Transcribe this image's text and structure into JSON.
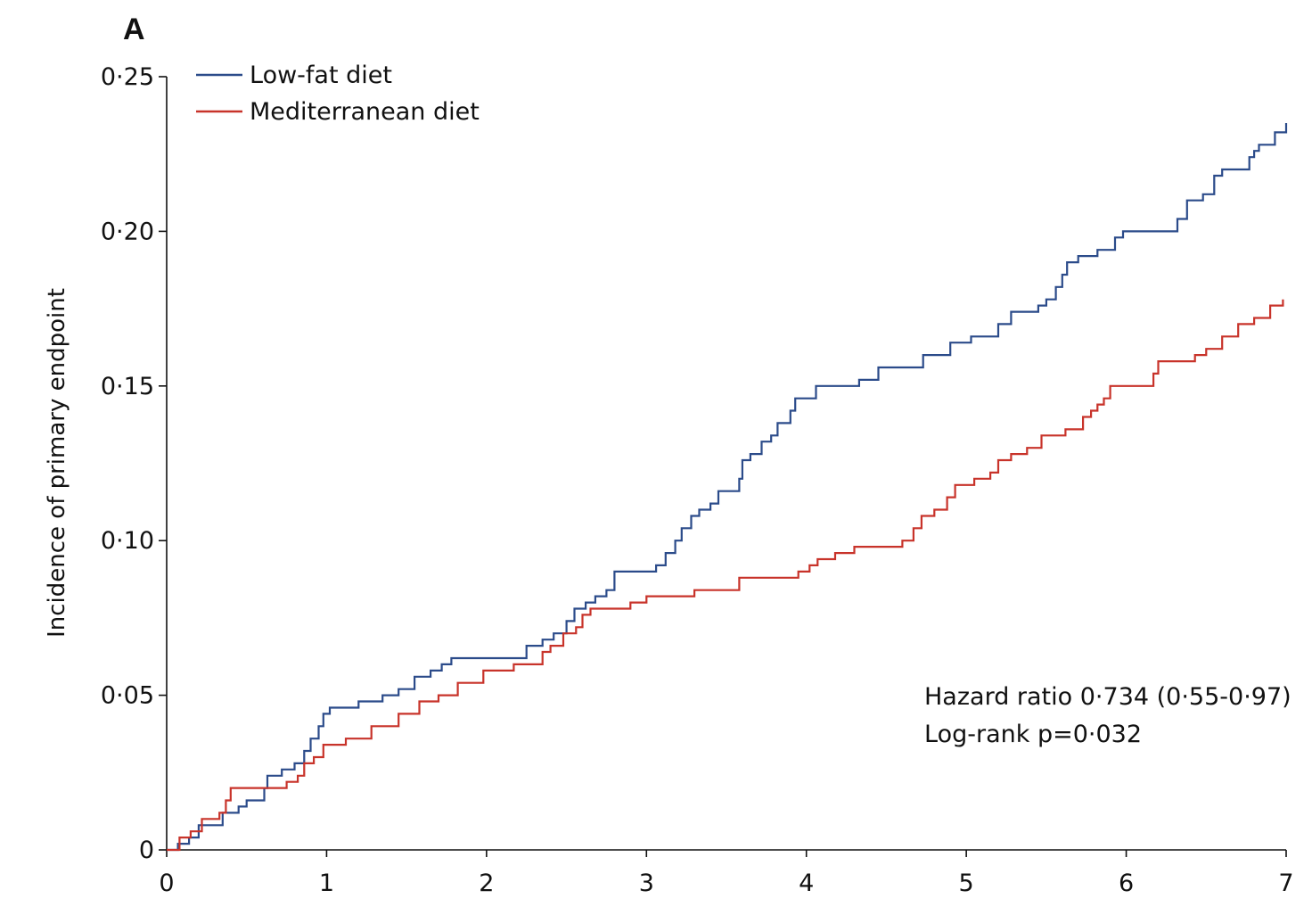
{
  "panel_label": "A",
  "chart_data": {
    "type": "line",
    "step": true,
    "xlabel": "",
    "ylabel": "Incidence of primary endpoint",
    "xlim": [
      0,
      7
    ],
    "ylim": [
      0,
      0.25
    ],
    "x_ticks": [
      0,
      1,
      2,
      3,
      4,
      5,
      6,
      7
    ],
    "x_tick_labels": [
      "0",
      "1",
      "2",
      "3",
      "4",
      "5",
      "6",
      "7"
    ],
    "y_ticks": [
      0,
      0.05,
      0.1,
      0.15,
      0.2,
      0.25
    ],
    "y_tick_labels": [
      "0",
      "0·05",
      "0·10",
      "0·15",
      "0·20",
      "0·25"
    ],
    "grid": false,
    "legend_position": "top-left",
    "series": [
      {
        "name": "Low-fat diet",
        "color": "#2b4b8a",
        "points": [
          [
            0,
            0
          ],
          [
            0.07,
            0.002
          ],
          [
            0.14,
            0.004
          ],
          [
            0.2,
            0.008
          ],
          [
            0.35,
            0.012
          ],
          [
            0.45,
            0.014
          ],
          [
            0.5,
            0.016
          ],
          [
            0.61,
            0.02
          ],
          [
            0.63,
            0.024
          ],
          [
            0.72,
            0.026
          ],
          [
            0.8,
            0.028
          ],
          [
            0.86,
            0.032
          ],
          [
            0.9,
            0.036
          ],
          [
            0.95,
            0.04
          ],
          [
            0.98,
            0.044
          ],
          [
            1.02,
            0.046
          ],
          [
            1.2,
            0.048
          ],
          [
            1.35,
            0.05
          ],
          [
            1.45,
            0.052
          ],
          [
            1.55,
            0.056
          ],
          [
            1.65,
            0.058
          ],
          [
            1.72,
            0.06
          ],
          [
            1.78,
            0.062
          ],
          [
            2.25,
            0.066
          ],
          [
            2.35,
            0.068
          ],
          [
            2.42,
            0.07
          ],
          [
            2.5,
            0.074
          ],
          [
            2.55,
            0.078
          ],
          [
            2.62,
            0.08
          ],
          [
            2.68,
            0.082
          ],
          [
            2.75,
            0.084
          ],
          [
            2.8,
            0.09
          ],
          [
            3.06,
            0.092
          ],
          [
            3.12,
            0.096
          ],
          [
            3.18,
            0.1
          ],
          [
            3.22,
            0.104
          ],
          [
            3.28,
            0.108
          ],
          [
            3.33,
            0.11
          ],
          [
            3.4,
            0.112
          ],
          [
            3.45,
            0.116
          ],
          [
            3.58,
            0.12
          ],
          [
            3.6,
            0.126
          ],
          [
            3.65,
            0.128
          ],
          [
            3.72,
            0.132
          ],
          [
            3.78,
            0.134
          ],
          [
            3.82,
            0.138
          ],
          [
            3.9,
            0.142
          ],
          [
            3.93,
            0.146
          ],
          [
            4.06,
            0.15
          ],
          [
            4.33,
            0.152
          ],
          [
            4.45,
            0.156
          ],
          [
            4.73,
            0.16
          ],
          [
            4.9,
            0.164
          ],
          [
            5.03,
            0.166
          ],
          [
            5.2,
            0.17
          ],
          [
            5.28,
            0.174
          ],
          [
            5.45,
            0.176
          ],
          [
            5.5,
            0.178
          ],
          [
            5.56,
            0.182
          ],
          [
            5.6,
            0.186
          ],
          [
            5.63,
            0.19
          ],
          [
            5.7,
            0.192
          ],
          [
            5.82,
            0.194
          ],
          [
            5.93,
            0.198
          ],
          [
            5.98,
            0.2
          ],
          [
            6.32,
            0.204
          ],
          [
            6.38,
            0.21
          ],
          [
            6.48,
            0.212
          ],
          [
            6.55,
            0.218
          ],
          [
            6.6,
            0.22
          ],
          [
            6.77,
            0.224
          ],
          [
            6.8,
            0.226
          ],
          [
            6.83,
            0.228
          ],
          [
            6.93,
            0.232
          ],
          [
            7.0,
            0.235
          ]
        ]
      },
      {
        "name": "Mediterranean diet",
        "color": "#c8332a",
        "points": [
          [
            0,
            0
          ],
          [
            0.08,
            0.004
          ],
          [
            0.15,
            0.006
          ],
          [
            0.22,
            0.01
          ],
          [
            0.33,
            0.012
          ],
          [
            0.37,
            0.016
          ],
          [
            0.4,
            0.02
          ],
          [
            0.75,
            0.022
          ],
          [
            0.82,
            0.024
          ],
          [
            0.86,
            0.028
          ],
          [
            0.92,
            0.03
          ],
          [
            0.98,
            0.034
          ],
          [
            1.12,
            0.036
          ],
          [
            1.28,
            0.04
          ],
          [
            1.45,
            0.044
          ],
          [
            1.58,
            0.048
          ],
          [
            1.7,
            0.05
          ],
          [
            1.82,
            0.054
          ],
          [
            1.98,
            0.058
          ],
          [
            2.17,
            0.06
          ],
          [
            2.35,
            0.064
          ],
          [
            2.4,
            0.066
          ],
          [
            2.48,
            0.07
          ],
          [
            2.56,
            0.072
          ],
          [
            2.6,
            0.076
          ],
          [
            2.65,
            0.078
          ],
          [
            2.9,
            0.08
          ],
          [
            3.0,
            0.082
          ],
          [
            3.3,
            0.084
          ],
          [
            3.58,
            0.088
          ],
          [
            3.95,
            0.09
          ],
          [
            4.02,
            0.092
          ],
          [
            4.07,
            0.094
          ],
          [
            4.18,
            0.096
          ],
          [
            4.3,
            0.098
          ],
          [
            4.6,
            0.1
          ],
          [
            4.67,
            0.104
          ],
          [
            4.72,
            0.108
          ],
          [
            4.8,
            0.11
          ],
          [
            4.88,
            0.114
          ],
          [
            4.93,
            0.118
          ],
          [
            5.05,
            0.12
          ],
          [
            5.15,
            0.122
          ],
          [
            5.2,
            0.126
          ],
          [
            5.28,
            0.128
          ],
          [
            5.38,
            0.13
          ],
          [
            5.47,
            0.134
          ],
          [
            5.62,
            0.136
          ],
          [
            5.73,
            0.14
          ],
          [
            5.78,
            0.142
          ],
          [
            5.82,
            0.144
          ],
          [
            5.86,
            0.146
          ],
          [
            5.9,
            0.15
          ],
          [
            6.17,
            0.154
          ],
          [
            6.2,
            0.158
          ],
          [
            6.43,
            0.16
          ],
          [
            6.5,
            0.162
          ],
          [
            6.6,
            0.166
          ],
          [
            6.7,
            0.17
          ],
          [
            6.8,
            0.172
          ],
          [
            6.9,
            0.176
          ],
          [
            6.98,
            0.178
          ]
        ]
      }
    ],
    "annotations": [
      "Hazard ratio 0·734 (0·55-0·97)",
      "Log-rank p=0·032"
    ]
  }
}
